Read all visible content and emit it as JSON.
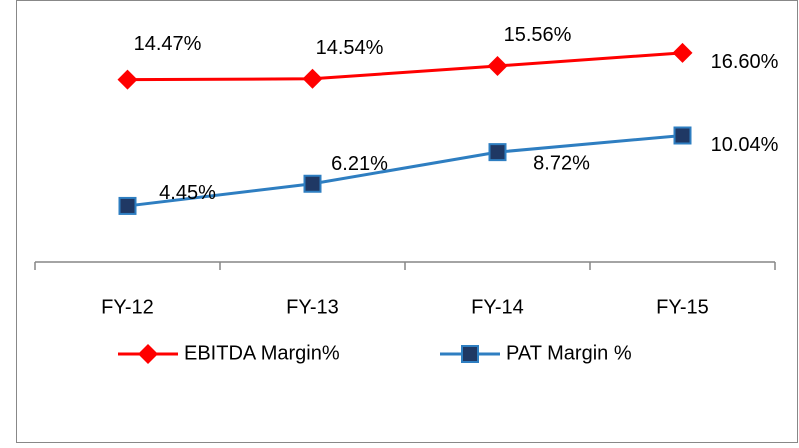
{
  "chart_data": {
    "type": "line",
    "categories": [
      "FY-12",
      "FY-13",
      "FY-14",
      "FY-15"
    ],
    "ylim": [
      0,
      20
    ],
    "legend": "bottom",
    "series": [
      {
        "name": "EBITDA Margin%",
        "color": "#ff0000",
        "marker": "diamond",
        "values": [
          14.47,
          14.54,
          15.56,
          16.6
        ],
        "value_labels": [
          "14.47%",
          "14.54%",
          "15.56%",
          "16.60%"
        ]
      },
      {
        "name": "PAT Margin %",
        "color": "#2e7ec1",
        "marker": "square",
        "marker_color": "#1f3864",
        "values": [
          4.45,
          6.21,
          8.72,
          10.04
        ],
        "value_labels": [
          "4.45%",
          "6.21%",
          "8.72%",
          "10.04%"
        ]
      }
    ]
  }
}
